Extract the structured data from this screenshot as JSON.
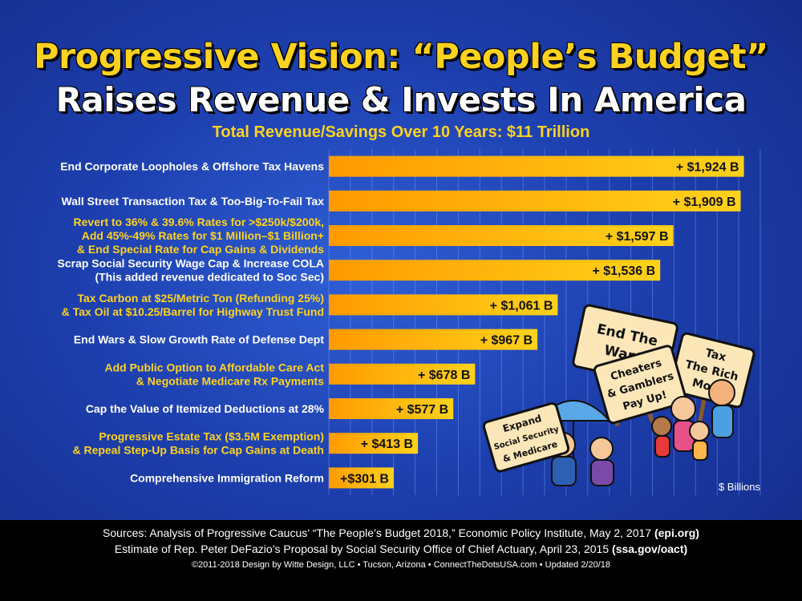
{
  "header": {
    "title_line1": "Progressive Vision: “People’s Budget”",
    "title_line2": "Raises Revenue & Invests In America",
    "subtitle": "Total Revenue/Savings Over 10 Years: $11 Trillion"
  },
  "chart_data": {
    "type": "bar",
    "orientation": "horizontal",
    "unit_label": "$ Billions",
    "xlim": [
      0,
      2000
    ],
    "grid": true,
    "categories": [
      [
        "End Corporate Loopholes & Offshore Tax Havens"
      ],
      [
        "Wall Street Transaction Tax & Too-Big-To-Fail Tax"
      ],
      [
        "Revert to 36% & 39.6% Rates for >$250k/$200k,",
        "Add 45%-49% Rates for $1 Million–$1 Billion+",
        "& End Special Rate for Cap Gains & Dividends"
      ],
      [
        "Scrap Social Security Wage Cap & Increase COLA",
        "(This added revenue dedicated to Soc Sec)"
      ],
      [
        "Tax Carbon at $25/Metric Ton (Refunding 25%)",
        "& Tax Oil at $10.25/Barrel for Highway Trust Fund"
      ],
      [
        "End Wars & Slow Growth Rate of Defense Dept"
      ],
      [
        "Add Public Option to Affordable Care Act",
        "& Negotiate Medicare Rx Payments"
      ],
      [
        "Cap the Value of Itemized Deductions at 28%"
      ],
      [
        "Progressive Estate Tax ($3.5M Exemption)",
        "& Repeal Step-Up Basis for Cap Gains at Death"
      ],
      [
        "Comprehensive Immigration Reform"
      ]
    ],
    "label_colors": [
      "#ffffff",
      "#ffffff",
      "#ffd21f",
      "#ffffff",
      "#ffd21f",
      "#ffffff",
      "#ffd21f",
      "#ffffff",
      "#ffd21f",
      "#ffffff"
    ],
    "values": [
      1924,
      1909,
      1597,
      1536,
      1061,
      967,
      678,
      577,
      413,
      301
    ],
    "value_labels": [
      "+ $1,924 B",
      "+ $1,909 B",
      "+ $1,597 B",
      "+ $1,536 B",
      "+ $1,061 B",
      "+ $967 B",
      "+ $678 B",
      "+ $577 B",
      "+ $413 B",
      "+$301 B"
    ],
    "bar_color_start": "#ff9a00",
    "bar_color_end": "#ffd21a"
  },
  "illustration": {
    "sign_end_wars": [
      "End The",
      "Wars"
    ],
    "sign_cheaters": [
      "Cheaters",
      "& Gamblers",
      "Pay Up!"
    ],
    "sign_tax_rich": [
      "Tax",
      "The Rich",
      "More"
    ],
    "sign_expand": [
      "Expand",
      "Social Security",
      "& Medicare"
    ]
  },
  "footer": {
    "sources_line1": "Sources: Analysis of Progressive Caucus’ “The People’s Budget 2018,” Economic Policy Institute, May 2, 2017 ",
    "sources_line1_bold": "(epi.org)",
    "sources_line2": "Estimate of Rep. Peter DeFazio’s Proposal by Social Security Office of Chief Actuary, April 23, 2015 ",
    "sources_line2_bold": "(ssa.gov/oact)",
    "copyright": "©2011-2018 Design by Witte Design, LLC  •  Tucson, Arizona  •  ConnectTheDotsUSA.com  •  Updated 2/20/18"
  }
}
